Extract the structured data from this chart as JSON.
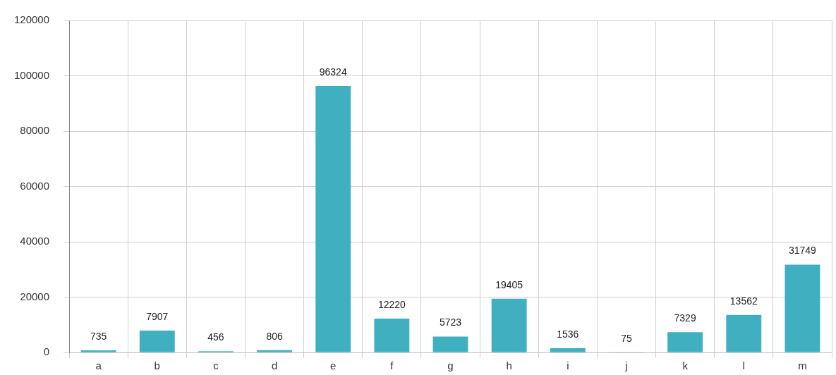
{
  "chart_data": {
    "type": "bar",
    "categories": [
      "a",
      "b",
      "c",
      "d",
      "e",
      "f",
      "g",
      "h",
      "i",
      "j",
      "k",
      "l",
      "m"
    ],
    "values": [
      735,
      7907,
      456,
      806,
      96324,
      12220,
      5723,
      19405,
      1536,
      75,
      7329,
      13562,
      31749
    ],
    "color": "#40afbf",
    "ylim": [
      0,
      120000
    ],
    "yticks": [
      0,
      20000,
      40000,
      60000,
      80000,
      100000,
      120000
    ],
    "grid": true,
    "data_labels": true,
    "legend": false
  }
}
